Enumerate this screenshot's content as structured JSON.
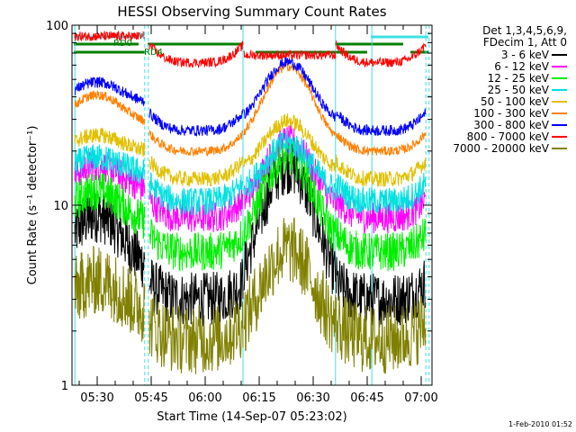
{
  "chart_data": {
    "type": "line",
    "title": "HESSI Observing Summary Count Rates",
    "xlabel": "Start Time (14-Sep-07 05:23:02)",
    "ylabel": "Count Rate (s⁻¹ detector⁻¹)",
    "yscale": "log",
    "ylim": [
      1,
      100
    ],
    "xlim_minutes": [
      25,
      102
    ],
    "x_ticks": [
      {
        "m": 30,
        "label": "05:30"
      },
      {
        "m": 45,
        "label": "05:45"
      },
      {
        "m": 60,
        "label": "06:00"
      },
      {
        "m": 75,
        "label": "06:15"
      },
      {
        "m": 90,
        "label": "06:30"
      },
      {
        "m": 105,
        "label": "06:45"
      },
      {
        "m": 120,
        "label": "07:00"
      }
    ],
    "y_ticks": [
      {
        "v": 1,
        "label": "1"
      },
      {
        "v": 10,
        "label": "10"
      },
      {
        "v": 100,
        "label": "100"
      }
    ],
    "legend_header": [
      "Det 1,3,4,5,6,9,",
      "FDecim 1, Att 0"
    ],
    "legend_placement": "right",
    "footer_date": "1-Feb-2010 01:52",
    "flags": [
      {
        "label": "N",
        "color": "#40e0e0",
        "ranges": [
          [
            23.5,
            41.5
          ],
          [
            106,
            122
          ]
        ]
      },
      {
        "label": "RD0",
        "color": "#008000",
        "ranges": [
          [
            23.5,
            41.5
          ],
          [
            44,
            70
          ],
          [
            96,
            115
          ]
        ]
      },
      {
        "label": "RD4",
        "color": "#008000",
        "ranges": [
          [
            23.5,
            43.5
          ],
          [
            74,
            96
          ],
          [
            96,
            105
          ],
          [
            117,
            122
          ]
        ]
      }
    ],
    "vlines": [
      {
        "m": 23.8,
        "color": "#40e0e0",
        "style": "solid"
      },
      {
        "m": 43.2,
        "color": "#40e0e0",
        "style": "dashed"
      },
      {
        "m": 44.2,
        "color": "#40e0e0",
        "style": "dashed"
      },
      {
        "m": 70.5,
        "color": "#40e0e0",
        "style": "solid"
      },
      {
        "m": 96.2,
        "color": "#40e0e0",
        "style": "solid"
      },
      {
        "m": 106.3,
        "color": "#40e0e0",
        "style": "solid"
      },
      {
        "m": 121.3,
        "color": "#40e0e0",
        "style": "dashed"
      },
      {
        "m": 122.2,
        "color": "#40e0e0",
        "style": "dashed"
      }
    ],
    "series": [
      {
        "name": "3 - 6 keV",
        "color": "#000000",
        "low": 3,
        "peak": 16,
        "high": 3,
        "noise": 0.35
      },
      {
        "name": "6 - 12 keV",
        "color": "#ff00ff",
        "low": 8.5,
        "peak": 22,
        "high": 8.5,
        "noise": 0.2
      },
      {
        "name": "12 - 25 keV",
        "color": "#00ee00",
        "low": 5.5,
        "peak": 18,
        "high": 5.5,
        "noise": 0.25
      },
      {
        "name": "25 - 50 keV",
        "color": "#00e0e0",
        "low": 10.5,
        "peak": 21,
        "high": 10.5,
        "noise": 0.18
      },
      {
        "name": "50 - 100 keV",
        "color": "#e0c000",
        "low": 14,
        "peak": 28,
        "high": 14,
        "noise": 0.1
      },
      {
        "name": "100 - 300 keV",
        "color": "#ff8000",
        "low": 20,
        "peak": 57,
        "high": 20,
        "noise": 0.06
      },
      {
        "name": "300 - 800 keV",
        "color": "#0000ff",
        "low": 26,
        "peak": 60,
        "high": 26,
        "noise": 0.07
      },
      {
        "name": "800 - 7000 keV",
        "color": "#ff0000",
        "low": 62,
        "peak": 62,
        "high": 62,
        "noise": 0.06
      },
      {
        "name": "7000 - 20000 keV",
        "color": "#808000",
        "low": 1.8,
        "peak": 5.5,
        "high": 1.8,
        "noise": 0.45
      }
    ]
  }
}
